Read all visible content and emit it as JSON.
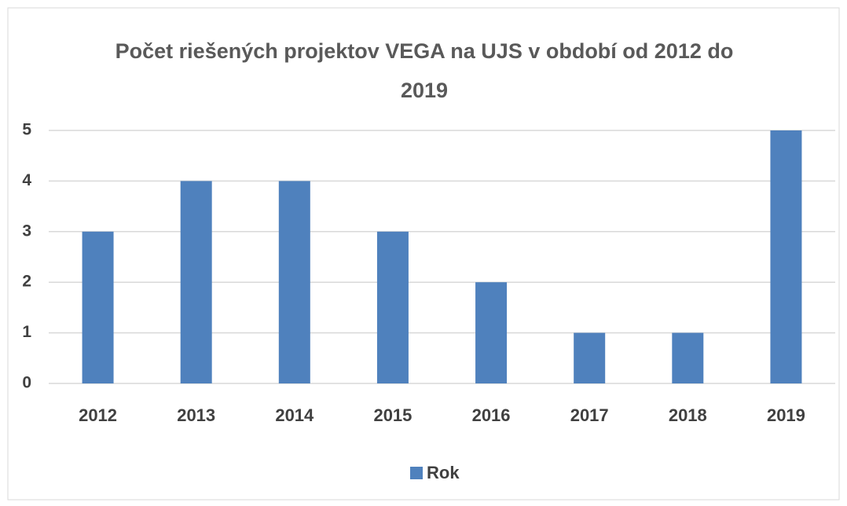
{
  "chart_data": {
    "type": "bar",
    "title": "Počet riešených projektov VEGA na UJS v období od 2012 do 2019",
    "categories": [
      "2012",
      "2013",
      "2014",
      "2015",
      "2016",
      "2017",
      "2018",
      "2019"
    ],
    "series": [
      {
        "name": "Rok",
        "color": "#4f81bd",
        "values": [
          3,
          4,
          4,
          3,
          2,
          1,
          1,
          5
        ]
      }
    ],
    "ylim": [
      0,
      5
    ],
    "yticks": [
      0,
      1,
      2,
      3,
      4,
      5
    ],
    "grid": true,
    "legend": "bottom"
  }
}
